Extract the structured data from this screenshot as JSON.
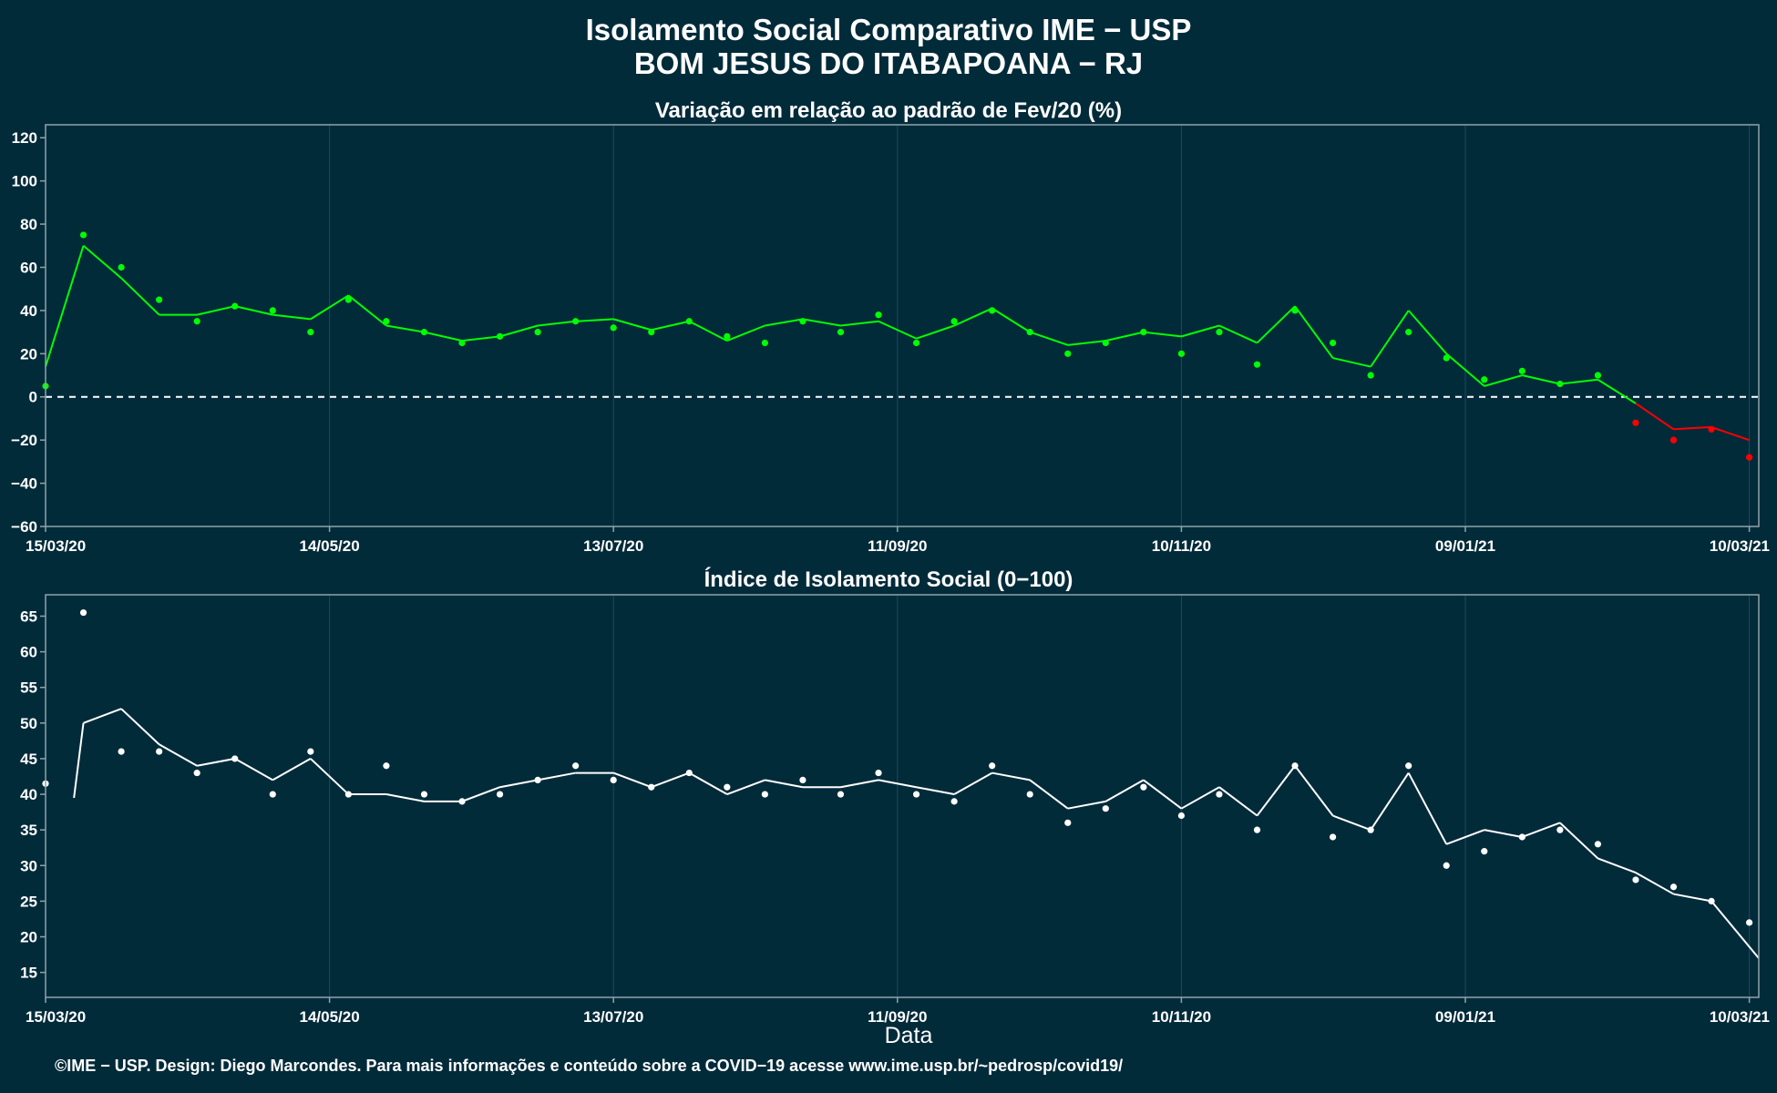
{
  "title_line1": "Isolamento Social Comparativo IME − USP",
  "title_line2": "BOM JESUS DO ITABAPOANA − RJ",
  "xlabel": "Data",
  "footer": "©IME − USP. Design: Diego Marcondes. Para mais informações e conteúdo sobre a COVID−19 acesse www.ime.usp.br/~pedrosp/covid19/",
  "colors": {
    "background": "#022b3a",
    "panel_border": "#8fa3ab",
    "grid": "#1d4b5a",
    "positive": "#00ff00",
    "negative": "#ff0000",
    "index_series": "#ffffff",
    "text": "#ffffff"
  },
  "chart_data": [
    {
      "type": "scatter",
      "title": "Variação em relação ao padrão de Fev/20 (%)",
      "x_range": [
        "15/03/20",
        "12/03/21"
      ],
      "x_ticks": [
        "15/03/20",
        "14/05/20",
        "13/07/20",
        "11/09/20",
        "10/11/20",
        "09/01/21",
        "10/03/21"
      ],
      "ylim": [
        -60,
        126
      ],
      "y_ticks": [
        120,
        100,
        80,
        60,
        40,
        20,
        0,
        -20,
        -40,
        -60
      ],
      "reference_line": 0,
      "grid": true,
      "encoding": "points and moving-average line colored green when above 0, red when below 0",
      "series": [
        {
          "kind": "points",
          "x": [
            "15/03/20",
            "23/03/20",
            "31/03/20",
            "08/04/20",
            "16/04/20",
            "24/04/20",
            "02/05/20",
            "10/05/20",
            "18/05/20",
            "26/05/20",
            "03/06/20",
            "11/06/20",
            "19/06/20",
            "27/06/20",
            "05/07/20",
            "13/07/20",
            "21/07/20",
            "29/07/20",
            "06/08/20",
            "14/08/20",
            "22/08/20",
            "30/08/20",
            "07/09/20",
            "15/09/20",
            "23/09/20",
            "01/10/20",
            "09/10/20",
            "17/10/20",
            "25/10/20",
            "02/11/20",
            "10/11/20",
            "18/11/20",
            "26/11/20",
            "04/12/20",
            "12/12/20",
            "20/12/20",
            "28/12/20",
            "05/01/21",
            "13/01/21",
            "21/01/21",
            "29/01/21",
            "06/02/21",
            "14/02/21",
            "22/02/21",
            "02/03/21",
            "10/03/21"
          ],
          "y": [
            5,
            75,
            60,
            45,
            35,
            42,
            40,
            30,
            45,
            35,
            30,
            25,
            28,
            30,
            35,
            32,
            30,
            35,
            28,
            25,
            35,
            30,
            38,
            25,
            35,
            40,
            30,
            20,
            25,
            30,
            20,
            30,
            15,
            40,
            25,
            10,
            30,
            18,
            8,
            12,
            6,
            10,
            -12,
            -20,
            -15,
            -28
          ]
        },
        {
          "kind": "moving_average_line",
          "x": [
            "15/03/20",
            "23/03/20",
            "31/03/20",
            "08/04/20",
            "16/04/20",
            "24/04/20",
            "02/05/20",
            "10/05/20",
            "18/05/20",
            "26/05/20",
            "03/06/20",
            "11/06/20",
            "19/06/20",
            "27/06/20",
            "05/07/20",
            "13/07/20",
            "21/07/20",
            "29/07/20",
            "06/08/20",
            "14/08/20",
            "22/08/20",
            "30/08/20",
            "07/09/20",
            "15/09/20",
            "23/09/20",
            "01/10/20",
            "09/10/20",
            "17/10/20",
            "25/10/20",
            "02/11/20",
            "10/11/20",
            "18/11/20",
            "26/11/20",
            "04/12/20",
            "12/12/20",
            "20/12/20",
            "28/12/20",
            "05/01/21",
            "13/01/21",
            "21/01/21",
            "29/01/21",
            "06/02/21",
            "14/02/21",
            "22/02/21",
            "02/03/21",
            "10/03/21"
          ],
          "y": [
            14,
            70,
            55,
            38,
            38,
            42,
            38,
            36,
            47,
            33,
            30,
            26,
            28,
            33,
            35,
            36,
            31,
            35,
            26,
            33,
            36,
            33,
            35,
            27,
            33,
            41,
            30,
            24,
            26,
            30,
            28,
            33,
            25,
            42,
            18,
            14,
            40,
            20,
            5,
            10,
            6,
            8,
            -3,
            -15,
            -14,
            -20
          ]
        }
      ]
    },
    {
      "type": "scatter",
      "title": "Índice de Isolamento Social (0−100)",
      "x_range": [
        "15/03/20",
        "12/03/21"
      ],
      "x_ticks": [
        "15/03/20",
        "14/05/20",
        "13/07/20",
        "11/09/20",
        "10/11/20",
        "09/01/21",
        "10/03/21"
      ],
      "ylim": [
        11.5,
        68
      ],
      "y_ticks": [
        65,
        60,
        55,
        50,
        45,
        40,
        35,
        30,
        25,
        20,
        15
      ],
      "grid": true,
      "series": [
        {
          "kind": "points",
          "x": [
            "15/03/20",
            "23/03/20",
            "31/03/20",
            "08/04/20",
            "16/04/20",
            "24/04/20",
            "02/05/20",
            "10/05/20",
            "18/05/20",
            "26/05/20",
            "03/06/20",
            "11/06/20",
            "19/06/20",
            "27/06/20",
            "05/07/20",
            "13/07/20",
            "21/07/20",
            "29/07/20",
            "06/08/20",
            "14/08/20",
            "22/08/20",
            "30/08/20",
            "07/09/20",
            "15/09/20",
            "23/09/20",
            "01/10/20",
            "09/10/20",
            "17/10/20",
            "25/10/20",
            "02/11/20",
            "10/11/20",
            "18/11/20",
            "26/11/20",
            "04/12/20",
            "12/12/20",
            "20/12/20",
            "28/12/20",
            "05/01/21",
            "13/01/21",
            "21/01/21",
            "29/01/21",
            "06/02/21",
            "14/02/21",
            "22/02/21",
            "02/03/21",
            "10/03/21"
          ],
          "y": [
            41.5,
            65.5,
            46,
            46,
            43,
            45,
            40,
            46,
            40,
            44,
            40,
            39,
            40,
            42,
            44,
            42,
            41,
            43,
            41,
            40,
            42,
            40,
            43,
            40,
            39,
            44,
            40,
            36,
            38,
            41,
            37,
            40,
            35,
            44,
            34,
            35,
            44,
            30,
            32,
            34,
            35,
            33,
            28,
            27,
            25,
            22
          ]
        },
        {
          "kind": "moving_average_line",
          "x": [
            "21/03/20",
            "23/03/20",
            "31/03/20",
            "08/04/20",
            "16/04/20",
            "24/04/20",
            "02/05/20",
            "10/05/20",
            "18/05/20",
            "26/05/20",
            "03/06/20",
            "11/06/20",
            "19/06/20",
            "27/06/20",
            "05/07/20",
            "13/07/20",
            "21/07/20",
            "29/07/20",
            "06/08/20",
            "14/08/20",
            "22/08/20",
            "30/08/20",
            "07/09/20",
            "15/09/20",
            "23/09/20",
            "01/10/20",
            "09/10/20",
            "17/10/20",
            "25/10/20",
            "02/11/20",
            "10/11/20",
            "18/11/20",
            "26/11/20",
            "04/12/20",
            "12/12/20",
            "20/12/20",
            "28/12/20",
            "05/01/21",
            "13/01/21",
            "21/01/21",
            "29/01/21",
            "06/02/21",
            "14/02/21",
            "22/02/21",
            "02/03/21",
            "12/03/21"
          ],
          "y": [
            39.5,
            50,
            52,
            47,
            44,
            45,
            42,
            45,
            40,
            40,
            39,
            39,
            41,
            42,
            43,
            43,
            41,
            43,
            40,
            42,
            41,
            41,
            42,
            41,
            40,
            43,
            42,
            38,
            39,
            42,
            38,
            41,
            37,
            44,
            37,
            35,
            43,
            33,
            35,
            34,
            36,
            31,
            29,
            26,
            25,
            17
          ]
        }
      ]
    }
  ]
}
